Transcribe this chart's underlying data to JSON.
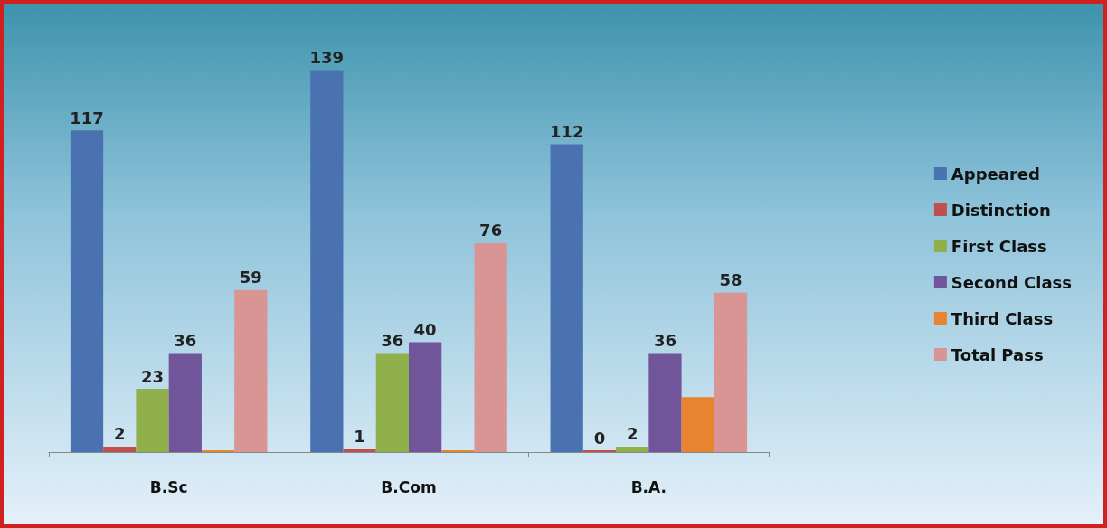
{
  "chart_data": {
    "type": "bar",
    "categories": [
      "B.Sc",
      "B.Com",
      "B.A."
    ],
    "legend": "right",
    "series": [
      {
        "name": "Appeared",
        "color": "#4a72b0",
        "values": [
          117,
          139,
          112
        ],
        "value_labels": [
          "117",
          "139",
          "112"
        ]
      },
      {
        "name": "Distinction",
        "color": "#c0504d",
        "values": [
          2,
          1,
          0
        ],
        "value_labels": [
          "2",
          "1",
          "0"
        ]
      },
      {
        "name": "First Class",
        "color": "#8fb04a",
        "values": [
          23,
          36,
          2
        ],
        "value_labels": [
          "23",
          "36",
          "2"
        ]
      },
      {
        "name": "Second Class",
        "color": "#71559a",
        "values": [
          36,
          40,
          36
        ],
        "value_labels": [
          "36",
          "40",
          "36"
        ]
      },
      {
        "name": "Third Class",
        "color": "#e8832f",
        "values": [
          0,
          0,
          20
        ],
        "value_labels": [
          null,
          null,
          null
        ]
      },
      {
        "name": "Total Pass",
        "color": "#d99594",
        "values": [
          59,
          76,
          58
        ],
        "value_labels": [
          "59",
          "76",
          "58"
        ]
      }
    ]
  }
}
